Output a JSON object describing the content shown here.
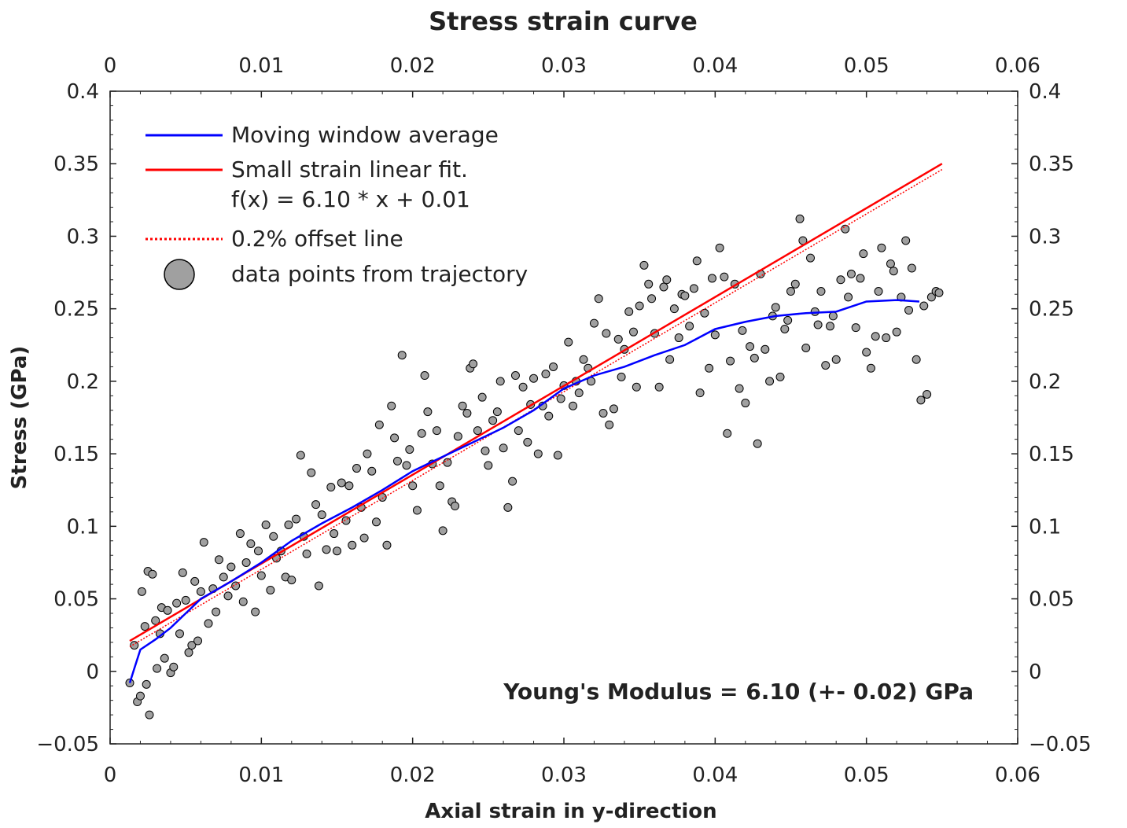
{
  "chart_data": {
    "type": "scatter",
    "title": "Stress strain curve",
    "xlabel": "Axial strain in y-direction",
    "ylabel": "Stress (GPa)",
    "xlim": [
      0,
      0.06
    ],
    "ylim": [
      -0.05,
      0.4
    ],
    "xticks": [
      0,
      0.01,
      0.02,
      0.03,
      0.04,
      0.05,
      0.06
    ],
    "xtick_labels": [
      "0",
      "0.01",
      "0.02",
      "0.03",
      "0.04",
      "0.05",
      "0.06"
    ],
    "yticks": [
      -0.05,
      0,
      0.05,
      0.1,
      0.15,
      0.2,
      0.25,
      0.3,
      0.35,
      0.4
    ],
    "ytick_labels": [
      "−0.05",
      "0",
      "0.05",
      "0.1",
      "0.15",
      "0.2",
      "0.25",
      "0.3",
      "0.35",
      "0.4"
    ],
    "grid": false,
    "legend_position": "top-left",
    "legend": [
      {
        "label": "Moving window average",
        "style": "line",
        "color": "#0000ff"
      },
      {
        "label": "Small strain linear fit.",
        "label2": "f(x) = 6.10 * x + 0.01",
        "style": "line",
        "color": "#ff0000"
      },
      {
        "label": "0.2% offset line",
        "style": "dotted",
        "color": "#ff0000"
      },
      {
        "label": "data points from trajectory",
        "style": "marker",
        "color": "#a0a0a0"
      }
    ],
    "annotation": "Young's Modulus = 6.10 (+- 0.02) GPa",
    "series": [
      {
        "name": "Moving window average",
        "type": "line",
        "color": "#0000ff",
        "points": [
          [
            0.0013,
            -0.008
          ],
          [
            0.0016,
            0.002
          ],
          [
            0.002,
            0.015
          ],
          [
            0.003,
            0.022
          ],
          [
            0.004,
            0.03
          ],
          [
            0.005,
            0.04
          ],
          [
            0.006,
            0.05
          ],
          [
            0.008,
            0.062
          ],
          [
            0.01,
            0.075
          ],
          [
            0.012,
            0.09
          ],
          [
            0.014,
            0.102
          ],
          [
            0.016,
            0.113
          ],
          [
            0.018,
            0.125
          ],
          [
            0.02,
            0.138
          ],
          [
            0.022,
            0.148
          ],
          [
            0.024,
            0.158
          ],
          [
            0.026,
            0.168
          ],
          [
            0.028,
            0.18
          ],
          [
            0.03,
            0.195
          ],
          [
            0.032,
            0.204
          ],
          [
            0.034,
            0.21
          ],
          [
            0.036,
            0.218
          ],
          [
            0.038,
            0.225
          ],
          [
            0.04,
            0.236
          ],
          [
            0.042,
            0.241
          ],
          [
            0.044,
            0.245
          ],
          [
            0.046,
            0.247
          ],
          [
            0.048,
            0.248
          ],
          [
            0.05,
            0.255
          ],
          [
            0.052,
            0.256
          ],
          [
            0.0535,
            0.255
          ]
        ]
      },
      {
        "name": "Small strain linear fit.",
        "type": "line",
        "color": "#ff0000",
        "points": [
          [
            0.0013,
            0.021
          ],
          [
            0.055,
            0.35
          ]
        ]
      },
      {
        "name": "0.2% offset line",
        "type": "dotted",
        "color": "#ff0000",
        "points": [
          [
            0.0013,
            0.017
          ],
          [
            0.055,
            0.346
          ]
        ]
      },
      {
        "name": "data points from trajectory",
        "type": "scatter",
        "color": "#a0a0a0",
        "points": [
          [
            0.0013,
            -0.008
          ],
          [
            0.0016,
            0.018
          ],
          [
            0.0018,
            -0.021
          ],
          [
            0.002,
            -0.017
          ],
          [
            0.0021,
            0.055
          ],
          [
            0.0023,
            0.031
          ],
          [
            0.0024,
            -0.009
          ],
          [
            0.0025,
            0.069
          ],
          [
            0.0026,
            -0.03
          ],
          [
            0.0028,
            0.067
          ],
          [
            0.003,
            0.035
          ],
          [
            0.0031,
            0.002
          ],
          [
            0.0033,
            0.026
          ],
          [
            0.0034,
            0.044
          ],
          [
            0.0036,
            0.009
          ],
          [
            0.0038,
            0.042
          ],
          [
            0.004,
            -0.001
          ],
          [
            0.0042,
            0.003
          ],
          [
            0.0044,
            0.047
          ],
          [
            0.0046,
            0.026
          ],
          [
            0.0048,
            0.068
          ],
          [
            0.005,
            0.049
          ],
          [
            0.0052,
            0.013
          ],
          [
            0.0054,
            0.018
          ],
          [
            0.0056,
            0.062
          ],
          [
            0.0058,
            0.021
          ],
          [
            0.006,
            0.055
          ],
          [
            0.0062,
            0.089
          ],
          [
            0.0065,
            0.033
          ],
          [
            0.0068,
            0.057
          ],
          [
            0.007,
            0.041
          ],
          [
            0.0072,
            0.077
          ],
          [
            0.0075,
            0.065
          ],
          [
            0.0078,
            0.052
          ],
          [
            0.008,
            0.072
          ],
          [
            0.0083,
            0.059
          ],
          [
            0.0086,
            0.095
          ],
          [
            0.0088,
            0.048
          ],
          [
            0.009,
            0.075
          ],
          [
            0.0093,
            0.088
          ],
          [
            0.0096,
            0.041
          ],
          [
            0.0098,
            0.083
          ],
          [
            0.01,
            0.066
          ],
          [
            0.0103,
            0.101
          ],
          [
            0.0106,
            0.056
          ],
          [
            0.0108,
            0.093
          ],
          [
            0.011,
            0.078
          ],
          [
            0.0113,
            0.083
          ],
          [
            0.0116,
            0.065
          ],
          [
            0.0118,
            0.101
          ],
          [
            0.012,
            0.063
          ],
          [
            0.0123,
            0.105
          ],
          [
            0.0126,
            0.149
          ],
          [
            0.0128,
            0.093
          ],
          [
            0.013,
            0.081
          ],
          [
            0.0133,
            0.137
          ],
          [
            0.0136,
            0.115
          ],
          [
            0.0138,
            0.059
          ],
          [
            0.014,
            0.108
          ],
          [
            0.0143,
            0.084
          ],
          [
            0.0146,
            0.127
          ],
          [
            0.0148,
            0.095
          ],
          [
            0.015,
            0.083
          ],
          [
            0.0153,
            0.13
          ],
          [
            0.0156,
            0.104
          ],
          [
            0.0158,
            0.128
          ],
          [
            0.016,
            0.087
          ],
          [
            0.0163,
            0.14
          ],
          [
            0.0166,
            0.113
          ],
          [
            0.0168,
            0.092
          ],
          [
            0.017,
            0.15
          ],
          [
            0.0173,
            0.138
          ],
          [
            0.0176,
            0.103
          ],
          [
            0.0178,
            0.17
          ],
          [
            0.018,
            0.12
          ],
          [
            0.0183,
            0.087
          ],
          [
            0.0186,
            0.183
          ],
          [
            0.0188,
            0.161
          ],
          [
            0.019,
            0.145
          ],
          [
            0.0193,
            0.218
          ],
          [
            0.0196,
            0.142
          ],
          [
            0.0198,
            0.153
          ],
          [
            0.02,
            0.128
          ],
          [
            0.0203,
            0.111
          ],
          [
            0.0206,
            0.164
          ],
          [
            0.0208,
            0.204
          ],
          [
            0.021,
            0.179
          ],
          [
            0.0213,
            0.143
          ],
          [
            0.0216,
            0.166
          ],
          [
            0.0218,
            0.128
          ],
          [
            0.022,
            0.097
          ],
          [
            0.0223,
            0.144
          ],
          [
            0.0226,
            0.117
          ],
          [
            0.0228,
            0.114
          ],
          [
            0.023,
            0.162
          ],
          [
            0.0233,
            0.183
          ],
          [
            0.0236,
            0.178
          ],
          [
            0.0238,
            0.209
          ],
          [
            0.024,
            0.212
          ],
          [
            0.0243,
            0.166
          ],
          [
            0.0246,
            0.189
          ],
          [
            0.0248,
            0.152
          ],
          [
            0.025,
            0.142
          ],
          [
            0.0253,
            0.173
          ],
          [
            0.0256,
            0.179
          ],
          [
            0.0258,
            0.2
          ],
          [
            0.026,
            0.154
          ],
          [
            0.0263,
            0.113
          ],
          [
            0.0266,
            0.131
          ],
          [
            0.0268,
            0.204
          ],
          [
            0.027,
            0.166
          ],
          [
            0.0273,
            0.196
          ],
          [
            0.0276,
            0.158
          ],
          [
            0.0278,
            0.184
          ],
          [
            0.028,
            0.202
          ],
          [
            0.0283,
            0.15
          ],
          [
            0.0286,
            0.183
          ],
          [
            0.0288,
            0.205
          ],
          [
            0.029,
            0.176
          ],
          [
            0.0293,
            0.21
          ],
          [
            0.0296,
            0.149
          ],
          [
            0.0298,
            0.188
          ],
          [
            0.03,
            0.197
          ],
          [
            0.0303,
            0.227
          ],
          [
            0.0306,
            0.183
          ],
          [
            0.0308,
            0.2
          ],
          [
            0.031,
            0.192
          ],
          [
            0.0313,
            0.215
          ],
          [
            0.0316,
            0.209
          ],
          [
            0.0318,
            0.2
          ],
          [
            0.032,
            0.24
          ],
          [
            0.0323,
            0.257
          ],
          [
            0.0326,
            0.178
          ],
          [
            0.0328,
            0.233
          ],
          [
            0.033,
            0.17
          ],
          [
            0.0333,
            0.181
          ],
          [
            0.0336,
            0.229
          ],
          [
            0.0338,
            0.203
          ],
          [
            0.034,
            0.222
          ],
          [
            0.0343,
            0.248
          ],
          [
            0.0346,
            0.234
          ],
          [
            0.0348,
            0.196
          ],
          [
            0.035,
            0.252
          ],
          [
            0.0353,
            0.28
          ],
          [
            0.0356,
            0.267
          ],
          [
            0.0358,
            0.257
          ],
          [
            0.036,
            0.233
          ],
          [
            0.0363,
            0.196
          ],
          [
            0.0366,
            0.265
          ],
          [
            0.0368,
            0.27
          ],
          [
            0.037,
            0.215
          ],
          [
            0.0373,
            0.25
          ],
          [
            0.0376,
            0.23
          ],
          [
            0.0378,
            0.26
          ],
          [
            0.038,
            0.259
          ],
          [
            0.0383,
            0.238
          ],
          [
            0.0386,
            0.264
          ],
          [
            0.0388,
            0.283
          ],
          [
            0.039,
            0.192
          ],
          [
            0.0393,
            0.247
          ],
          [
            0.0396,
            0.209
          ],
          [
            0.0398,
            0.271
          ],
          [
            0.04,
            0.232
          ],
          [
            0.0403,
            0.292
          ],
          [
            0.0406,
            0.272
          ],
          [
            0.0408,
            0.164
          ],
          [
            0.041,
            0.214
          ],
          [
            0.0413,
            0.267
          ],
          [
            0.0416,
            0.195
          ],
          [
            0.0418,
            0.235
          ],
          [
            0.042,
            0.185
          ],
          [
            0.0423,
            0.224
          ],
          [
            0.0426,
            0.216
          ],
          [
            0.0428,
            0.157
          ],
          [
            0.043,
            0.274
          ],
          [
            0.0433,
            0.222
          ],
          [
            0.0436,
            0.2
          ],
          [
            0.0438,
            0.245
          ],
          [
            0.044,
            0.251
          ],
          [
            0.0443,
            0.203
          ],
          [
            0.0446,
            0.236
          ],
          [
            0.0448,
            0.242
          ],
          [
            0.045,
            0.262
          ],
          [
            0.0453,
            0.267
          ],
          [
            0.0456,
            0.312
          ],
          [
            0.0458,
            0.297
          ],
          [
            0.046,
            0.223
          ],
          [
            0.0463,
            0.285
          ],
          [
            0.0466,
            0.248
          ],
          [
            0.0468,
            0.239
          ],
          [
            0.047,
            0.262
          ],
          [
            0.0473,
            0.211
          ],
          [
            0.0476,
            0.238
          ],
          [
            0.0478,
            0.245
          ],
          [
            0.048,
            0.215
          ],
          [
            0.0483,
            0.27
          ],
          [
            0.0486,
            0.305
          ],
          [
            0.0488,
            0.258
          ],
          [
            0.049,
            0.274
          ],
          [
            0.0493,
            0.237
          ],
          [
            0.0496,
            0.271
          ],
          [
            0.0498,
            0.288
          ],
          [
            0.05,
            0.22
          ],
          [
            0.0503,
            0.209
          ],
          [
            0.0506,
            0.231
          ],
          [
            0.0508,
            0.262
          ],
          [
            0.051,
            0.292
          ],
          [
            0.0513,
            0.23
          ],
          [
            0.0516,
            0.281
          ],
          [
            0.0518,
            0.276
          ],
          [
            0.052,
            0.234
          ],
          [
            0.0523,
            0.258
          ],
          [
            0.0526,
            0.297
          ],
          [
            0.0528,
            0.249
          ],
          [
            0.053,
            0.278
          ],
          [
            0.0533,
            0.215
          ],
          [
            0.0536,
            0.187
          ],
          [
            0.0538,
            0.252
          ],
          [
            0.054,
            0.191
          ],
          [
            0.0543,
            0.258
          ],
          [
            0.0546,
            0.262
          ],
          [
            0.0548,
            0.261
          ]
        ]
      }
    ]
  }
}
